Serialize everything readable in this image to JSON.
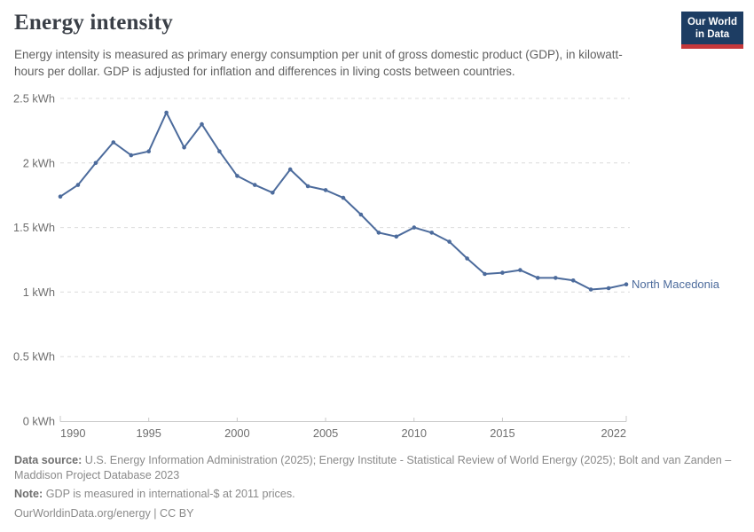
{
  "header": {
    "title": "Energy intensity",
    "subtitle": "Energy intensity is measured as primary energy consumption per unit of gross domestic product (GDP), in kilowatt-hours per dollar. GDP is adjusted for inflation and differences in living costs between countries.",
    "logo": {
      "line1": "Our World",
      "line2": "in Data",
      "bg_color": "#1d3d63",
      "accent_color": "#c5383b"
    }
  },
  "chart_data": {
    "type": "line",
    "title": "Energy intensity",
    "unit": "kWh",
    "xlabel": "",
    "ylabel": "",
    "xlim": [
      1990,
      2022
    ],
    "ylim": [
      0,
      2.5
    ],
    "grid": "horizontal-dashed",
    "legend_position": "end-of-line-label",
    "x": [
      1990,
      1991,
      1992,
      1993,
      1994,
      1995,
      1996,
      1997,
      1998,
      1999,
      2000,
      2001,
      2002,
      2003,
      2004,
      2005,
      2006,
      2007,
      2008,
      2009,
      2010,
      2011,
      2012,
      2013,
      2014,
      2015,
      2016,
      2017,
      2018,
      2019,
      2020,
      2021,
      2022
    ],
    "series": [
      {
        "name": "North Macedonia",
        "color": "#4C6B9C",
        "values": [
          1.74,
          1.83,
          2.0,
          2.16,
          2.06,
          2.09,
          2.39,
          2.12,
          2.3,
          2.09,
          1.9,
          1.83,
          1.77,
          1.95,
          1.82,
          1.79,
          1.73,
          1.6,
          1.46,
          1.43,
          1.5,
          1.46,
          1.39,
          1.26,
          1.14,
          1.15,
          1.17,
          1.11,
          1.11,
          1.09,
          1.02,
          1.03,
          1.06
        ]
      }
    ],
    "y_ticks": [
      {
        "value": 0,
        "label": "0 kWh"
      },
      {
        "value": 0.5,
        "label": "0.5 kWh"
      },
      {
        "value": 1,
        "label": "1 kWh"
      },
      {
        "value": 1.5,
        "label": "1.5 kWh"
      },
      {
        "value": 2,
        "label": "2 kWh"
      },
      {
        "value": 2.5,
        "label": "2.5 kWh"
      }
    ],
    "x_ticks": [
      {
        "value": 1990,
        "label": "1990"
      },
      {
        "value": 1995,
        "label": "1995"
      },
      {
        "value": 2000,
        "label": "2000"
      },
      {
        "value": 2005,
        "label": "2005"
      },
      {
        "value": 2010,
        "label": "2010"
      },
      {
        "value": 2015,
        "label": "2015"
      },
      {
        "value": 2022,
        "label": "2022"
      }
    ],
    "series_label": "North Macedonia"
  },
  "style": {
    "line_color": "#4C6B9C",
    "grid_color": "#dcdcdc",
    "axis_color": "#c8c8c8",
    "axis_text_color": "#6e6e6e"
  },
  "footer": {
    "data_source_label": "Data source:",
    "data_source_text": "U.S. Energy Information Administration (2025); Energy Institute - Statistical Review of World Energy (2025); Bolt and van Zanden – Maddison Project Database 2023",
    "note_label": "Note:",
    "note_text": "GDP is measured in international-$ at 2011 prices.",
    "license_url": "OurWorldinData.org/energy",
    "license_separator": " | ",
    "license_text": "CC BY"
  }
}
